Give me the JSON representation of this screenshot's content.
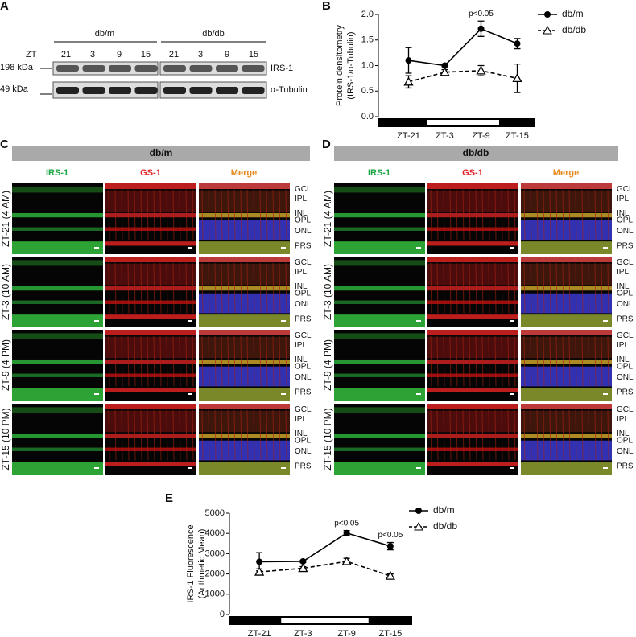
{
  "panel_labels": [
    "A",
    "B",
    "C",
    "D",
    "E"
  ],
  "blot": {
    "groups": [
      "db/m",
      "db/db"
    ],
    "row_label": "ZT",
    "lanes": [
      "21",
      "3",
      "9",
      "15",
      "21",
      "3",
      "9",
      "15"
    ],
    "markers": [
      "198 kDa",
      "49 kDa"
    ],
    "proteins": [
      "IRS-1",
      "α-Tubulin"
    ]
  },
  "chart_data": [
    {
      "type": "line",
      "y_label": [
        "Protein densitometry",
        "(IRS-1/α-Tubulin)"
      ],
      "categories": [
        "ZT-21",
        "ZT-3",
        "ZT-9",
        "ZT-15"
      ],
      "ylim": [
        0,
        2
      ],
      "yticks": [
        {
          "value": 0,
          "label": "0.0"
        },
        {
          "value": 0.5,
          "label": "0.5"
        },
        {
          "value": 1,
          "label": "1.0"
        },
        {
          "value": 1.5,
          "label": "1.5"
        },
        {
          "value": 2,
          "label": "2.0"
        }
      ],
      "series": [
        {
          "name": "db/m",
          "color": "#000000",
          "marker": "circle",
          "line_style": "solid",
          "values": [
            1.1,
            1.0,
            1.72,
            1.43
          ],
          "errors": [
            0.25,
            0.02,
            0.15,
            0.1
          ]
        },
        {
          "name": "db/db",
          "color": "#000000",
          "marker": "triangle",
          "line_style": "dashed",
          "values": [
            0.68,
            0.87,
            0.9,
            0.75
          ],
          "errors": [
            0.12,
            0.05,
            0.1,
            0.28
          ]
        }
      ],
      "annotations": [
        {
          "text": "p<0.05",
          "x": "ZT-9"
        }
      ],
      "legend": "upper right"
    },
    {
      "type": "line",
      "y_label": [
        "IRS-1 Fluorescence",
        "(Arithmetic Mean)"
      ],
      "categories": [
        "ZT-21",
        "ZT-3",
        "ZT-9",
        "ZT-15"
      ],
      "ylim": [
        0,
        5000
      ],
      "yticks": [
        0,
        1000,
        2000,
        3000,
        4000,
        5000
      ],
      "series": [
        {
          "name": "db/m",
          "color": "#000000",
          "marker": "circle",
          "line_style": "solid",
          "values": [
            2600,
            2620,
            4020,
            3370
          ],
          "errors": [
            450,
            50,
            120,
            180
          ]
        },
        {
          "name": "db/db",
          "color": "#000000",
          "marker": "triangle",
          "line_style": "dashed",
          "values": [
            2100,
            2280,
            2620,
            1900
          ],
          "errors": [
            150,
            80,
            150,
            100
          ]
        }
      ],
      "annotations": [
        {
          "text": "p<0.05",
          "x": "ZT-9"
        },
        {
          "text": "p<0.05",
          "x": "ZT-15"
        }
      ],
      "legend": "upper right"
    }
  ],
  "micrographs": [
    {
      "group": "db/m",
      "columns": [
        "IRS-1",
        "GS-1",
        "Merge"
      ],
      "rows": [
        "ZT-21 (4 AM)",
        "ZT-3 (10 AM)",
        "ZT-9 (4 PM)",
        "ZT-15 (10 PM)"
      ],
      "layers": [
        "GCL",
        "IPL",
        "INL",
        "OPL",
        "ONL",
        "PRS"
      ]
    },
    {
      "group": "db/db",
      "columns": [
        "IRS-1",
        "GS-1",
        "Merge"
      ],
      "rows": [
        "ZT-21 (4 AM)",
        "ZT-3 (10 AM)",
        "ZT-9 (4 PM)",
        "ZT-15 (10 PM)"
      ],
      "layers": [
        "GCL",
        "IPL",
        "INL",
        "OPL",
        "ONL",
        "PRS"
      ]
    }
  ]
}
